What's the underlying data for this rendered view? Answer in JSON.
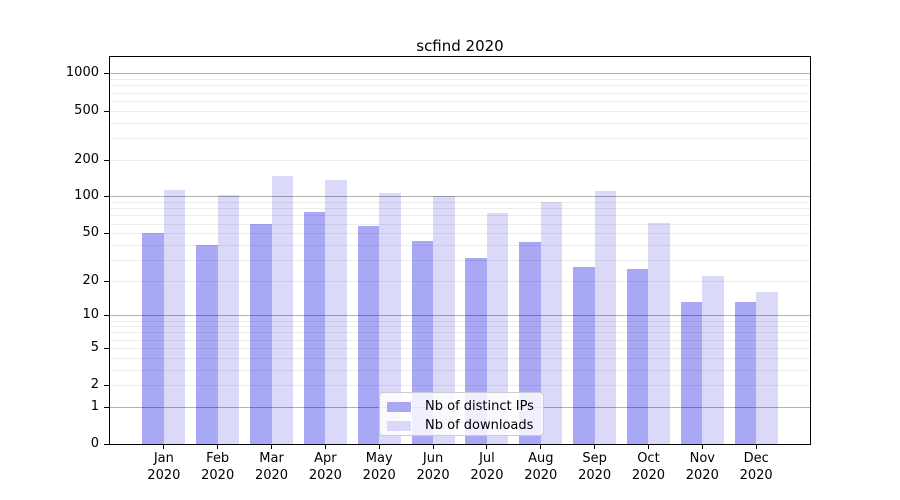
{
  "title": "scfind 2020",
  "chart_data": {
    "type": "bar",
    "title": "scfind 2020",
    "categories": [
      "Jan 2020",
      "Feb 2020",
      "Mar 2020",
      "Apr 2020",
      "May 2020",
      "Jun 2020",
      "Jul 2020",
      "Aug 2020",
      "Sep 2020",
      "Oct 2020",
      "Nov 2020",
      "Dec 2020"
    ],
    "series": [
      {
        "name": "Nb of distinct IPs",
        "color": "#a8a8f5",
        "values": [
          50,
          40,
          59,
          75,
          57,
          43,
          31,
          42,
          26,
          25,
          13,
          13
        ]
      },
      {
        "name": "Nb of downloads",
        "color": "#dadaf8",
        "values": [
          113,
          102,
          147,
          136,
          107,
          101,
          73,
          90,
          111,
          61,
          22,
          16
        ]
      }
    ],
    "xlabel": "",
    "ylabel": "",
    "yscale": "log1p",
    "yticks": [
      0,
      1,
      2,
      5,
      10,
      20,
      50,
      100,
      200,
      500,
      1000
    ],
    "ylim": [
      0,
      1350
    ],
    "grid": true,
    "legend_position": "lower center"
  },
  "colors": {
    "bar_ips": "#a8a8f5",
    "bar_downloads": "#dadaf8",
    "grid_major": "rgba(0,0,0,0.30)",
    "grid_minor": "rgba(0,0,0,0.07)",
    "axis": "#000000",
    "legend_border": "#cccccc",
    "legend_background": "rgba(255,255,255,0.82)"
  }
}
